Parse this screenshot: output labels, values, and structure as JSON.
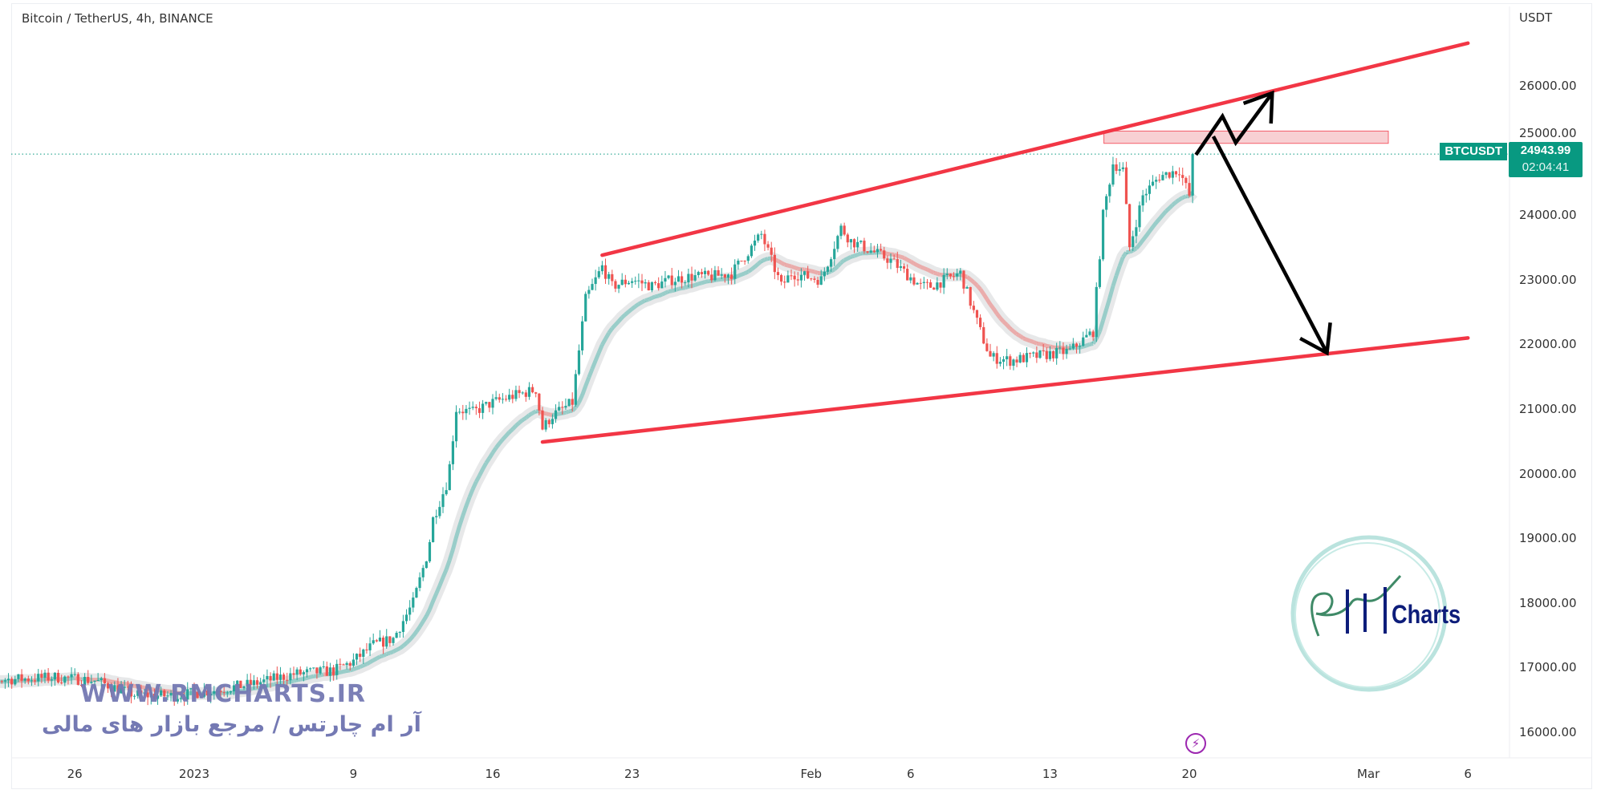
{
  "header": {
    "title": "Bitcoin / TetherUS, 4h, BINANCE",
    "unit": "USDT"
  },
  "price_tag": {
    "ticker": "BTCUSDT",
    "price": "24943.99",
    "countdown": "02:04:41"
  },
  "watermark": {
    "site": "WWW.RMCHARTS.IR",
    "tagline": "آر ام چارتس / مرجع بازار های مالی",
    "logo_text": "Charts"
  },
  "colors": {
    "up": "#26a69a",
    "down": "#ef5350",
    "trendline": "#f23645",
    "zone_fill": "#f7c5c9",
    "arrow": "#000000",
    "price_line": "#089981"
  },
  "icons": {
    "alert": "lightning-bolt-icon"
  },
  "chart_data": {
    "type": "candlestick",
    "title": "Bitcoin / TetherUS, 4h, BINANCE",
    "interval": "4h",
    "ylabel": "USDT",
    "ylim": [
      15500,
      27300
    ],
    "yticks": [
      "26000.00",
      "25000.00",
      "24000.00",
      "23000.00",
      "22000.00",
      "21000.00",
      "20000.00",
      "19000.00",
      "18000.00",
      "17000.00",
      "16000.00"
    ],
    "xticks": [
      {
        "label": "26",
        "date": "2022-12-26"
      },
      {
        "label": "2023",
        "date": "2023-01-01"
      },
      {
        "label": "9",
        "date": "2023-01-09"
      },
      {
        "label": "16",
        "date": "2023-01-16"
      },
      {
        "label": "23",
        "date": "2023-01-23"
      },
      {
        "label": "Feb",
        "date": "2023-02-01"
      },
      {
        "label": "6",
        "date": "2023-02-06"
      },
      {
        "label": "13",
        "date": "2023-02-13"
      },
      {
        "label": "20",
        "date": "2023-02-20"
      },
      {
        "label": "Mar",
        "date": "2023-03-01"
      },
      {
        "label": "6",
        "date": "2023-03-06"
      }
    ],
    "last_price": 24943.99,
    "approx_closes": [
      [
        "2022-12-20T12",
        16800
      ],
      [
        "2022-12-23T00",
        16820
      ],
      [
        "2022-12-25T00",
        16850
      ],
      [
        "2022-12-27T00",
        16800
      ],
      [
        "2022-12-29T00",
        16580
      ],
      [
        "2022-12-31T00",
        16560
      ],
      [
        "2023-01-02T00",
        16650
      ],
      [
        "2023-01-04T00",
        16750
      ],
      [
        "2023-01-06T00",
        16900
      ],
      [
        "2023-01-08T00",
        16950
      ],
      [
        "2023-01-09T00",
        17100
      ],
      [
        "2023-01-10T00",
        17350
      ],
      [
        "2023-01-11T00",
        17450
      ],
      [
        "2023-01-12T00",
        18000
      ],
      [
        "2023-01-12T18",
        18800
      ],
      [
        "2023-01-13T00",
        19300
      ],
      [
        "2023-01-13T18",
        19900
      ],
      [
        "2023-01-14T04",
        21000
      ],
      [
        "2023-01-15T00",
        20950
      ],
      [
        "2023-01-16T00",
        21100
      ],
      [
        "2023-01-17T00",
        21200
      ],
      [
        "2023-01-18T04",
        21300
      ],
      [
        "2023-01-18T12",
        20700
      ],
      [
        "2023-01-19T00",
        20900
      ],
      [
        "2023-01-20T00",
        21100
      ],
      [
        "2023-01-20T16",
        22700
      ],
      [
        "2023-01-21T12",
        23200
      ],
      [
        "2023-01-22T00",
        22900
      ],
      [
        "2023-01-23T00",
        23000
      ],
      [
        "2023-01-24T00",
        22900
      ],
      [
        "2023-01-25T00",
        23000
      ],
      [
        "2023-01-26T00",
        23050
      ],
      [
        "2023-01-27T00",
        23050
      ],
      [
        "2023-01-28T00",
        23100
      ],
      [
        "2023-01-29T12",
        23700
      ],
      [
        "2023-01-30T12",
        22900
      ],
      [
        "2023-01-31T00",
        23100
      ],
      [
        "2023-02-01T12",
        23000
      ],
      [
        "2023-02-02T12",
        23800
      ],
      [
        "2023-02-03T00",
        23600
      ],
      [
        "2023-02-04T00",
        23450
      ],
      [
        "2023-02-05T00",
        23300
      ],
      [
        "2023-02-06T12",
        22900
      ],
      [
        "2023-02-07T00",
        22900
      ],
      [
        "2023-02-08T12",
        23100
      ],
      [
        "2023-02-09T12",
        22200
      ],
      [
        "2023-02-10T00",
        21800
      ],
      [
        "2023-02-11T00",
        21750
      ],
      [
        "2023-02-12T00",
        21800
      ],
      [
        "2023-02-13T00",
        21850
      ],
      [
        "2023-02-14T00",
        21900
      ],
      [
        "2023-02-15T04",
        22200
      ],
      [
        "2023-02-15T16",
        24000
      ],
      [
        "2023-02-16T04",
        24800
      ],
      [
        "2023-02-16T16",
        24700
      ],
      [
        "2023-02-17T00",
        23500
      ],
      [
        "2023-02-17T16",
        24300
      ],
      [
        "2023-02-18T12",
        24600
      ],
      [
        "2023-02-19T12",
        24700
      ],
      [
        "2023-02-20T00",
        24300
      ],
      [
        "2023-02-20T04",
        24944
      ]
    ],
    "drawings": {
      "upper_trendline": [
        [
          "2023-01-21T12",
          23380
        ],
        [
          "2023-03-06T00",
          26660
        ]
      ],
      "lower_trendline": [
        [
          "2023-01-18T12",
          20490
        ],
        [
          "2023-03-06T00",
          22100
        ]
      ],
      "resistance_zone": {
        "from": "2023-02-15T17",
        "to": "2023-03-02T00",
        "top": 25300,
        "bottom": 25110
      },
      "bull_path_arrow": [
        [
          "2023-02-20T08",
          24933
        ],
        [
          "2023-02-21T16",
          25529
        ],
        [
          "2023-02-22T08",
          25119
        ],
        [
          "2023-02-24T04",
          25888
        ]
      ],
      "bear_arrow": [
        [
          "2023-02-21T05",
          25218
        ],
        [
          "2023-02-26T22",
          21868
        ]
      ]
    }
  }
}
